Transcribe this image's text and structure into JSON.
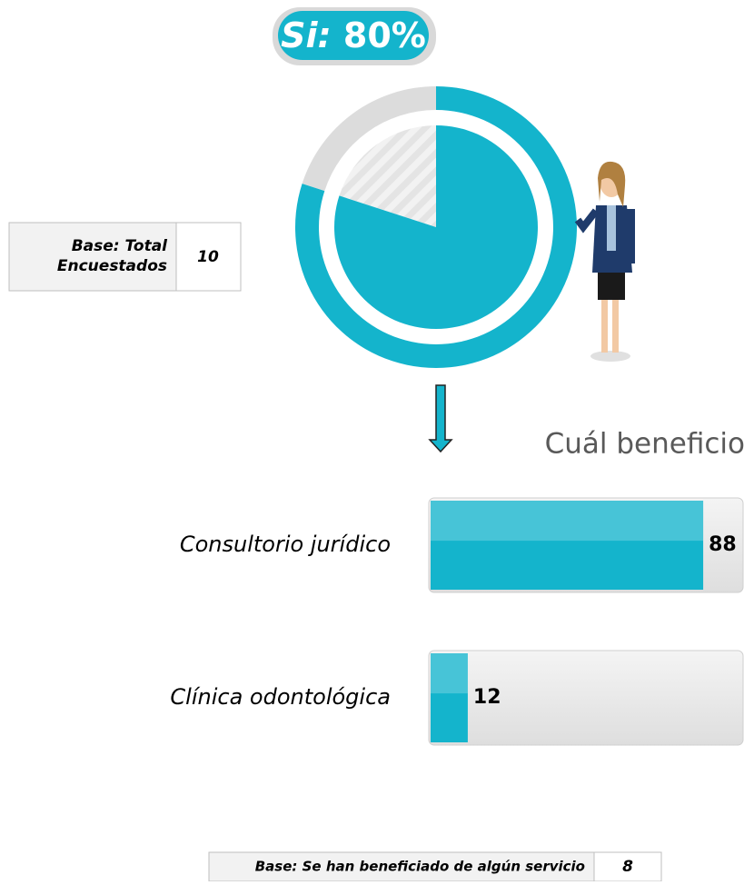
{
  "chart_data": [
    {
      "type": "donut",
      "categories": [
        "Si:"
      ],
      "values": [
        80
      ],
      "value_labels": [
        "80%"
      ],
      "color": "#14b4cc",
      "rest_color": "#dcdcdc"
    },
    {
      "type": "hbar",
      "title": "Cuál beneficio",
      "categories": [
        "Consultorio jurídico",
        "Clínica odontológica"
      ],
      "values": [
        88,
        12
      ],
      "xlim": [
        0,
        100
      ],
      "color": "#14b4cc"
    }
  ],
  "base_tables": [
    {
      "label": "Base: Total Encuestados",
      "value": "10"
    },
    {
      "label": "Base: Se han beneficiado de algún servicio",
      "value": "8"
    }
  ]
}
